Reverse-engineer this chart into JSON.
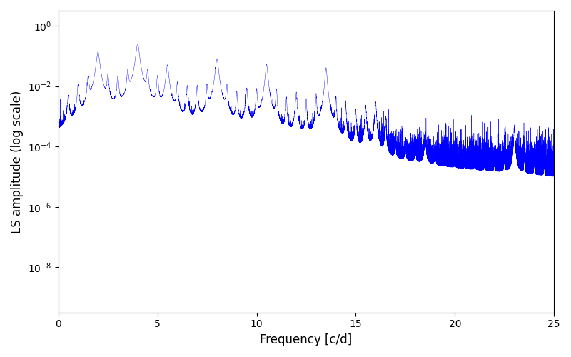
{
  "xlabel": "Frequency [c/d]",
  "ylabel": "LS amplitude (log scale)",
  "xlim": [
    0,
    25
  ],
  "ylim_log": [
    -9.5,
    0
  ],
  "line_color": "#0000ff",
  "background_color": "#ffffff",
  "figsize": [
    8.0,
    5.0
  ],
  "dpi": 100,
  "num_points": 50000,
  "seed": 42,
  "peak_freqs": [
    2.0,
    4.0,
    5.5,
    8.0,
    9.5,
    10.5,
    12.0,
    13.5,
    15.5,
    16.0,
    18.5,
    23.0
  ],
  "peak_amps": [
    0.13,
    0.25,
    0.04,
    0.08,
    0.003,
    0.05,
    0.003,
    0.04,
    0.001,
    0.002,
    0.0002,
    0.0004
  ],
  "peak_widths": [
    0.08,
    0.08,
    0.07,
    0.07,
    0.06,
    0.06,
    0.05,
    0.05,
    0.04,
    0.04,
    0.03,
    0.03
  ],
  "noise_floor_base": 1e-05,
  "noise_decay": 0.03
}
